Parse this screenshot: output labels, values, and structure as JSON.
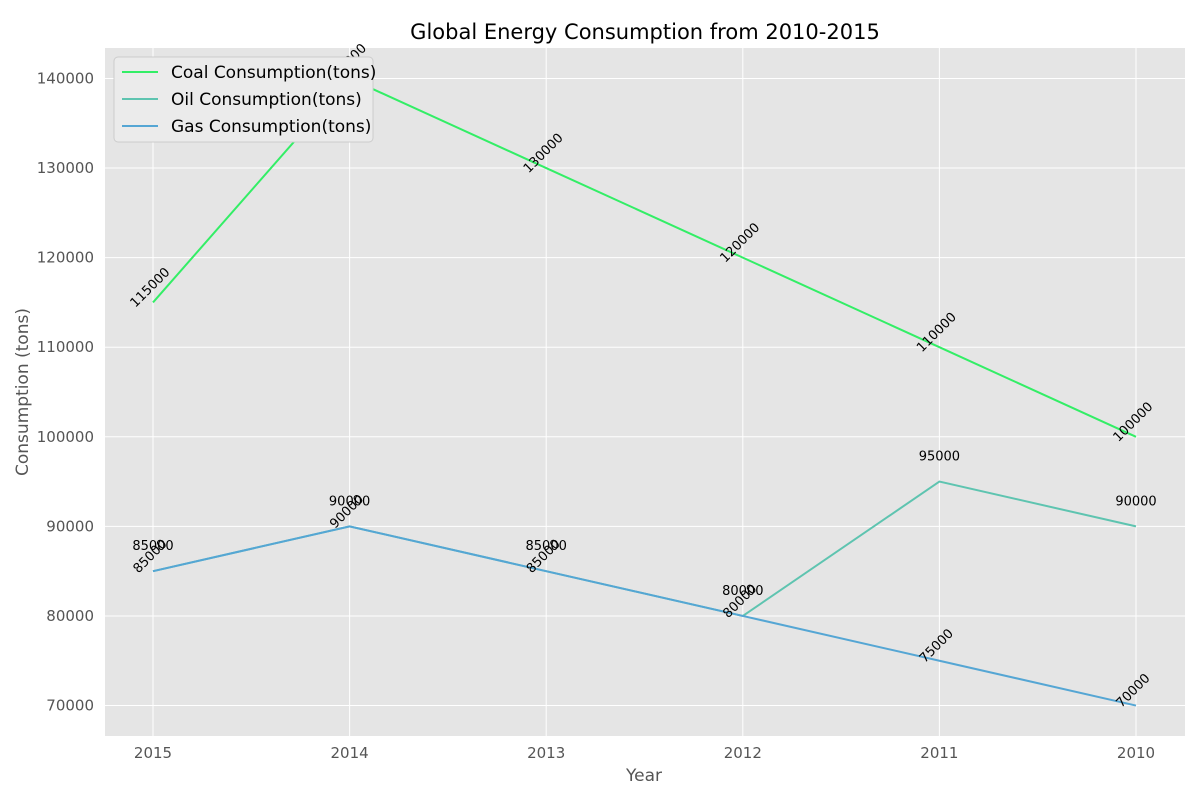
{
  "chart_data": {
    "type": "line",
    "title": "Global Energy Consumption from 2010-2015",
    "xlabel": "Year",
    "ylabel": "Consumption (tons)",
    "categories": [
      "2015",
      "2014",
      "2013",
      "2012",
      "2011",
      "2010"
    ],
    "ylim": [
      66600,
      143400
    ],
    "yticks": [
      70000,
      80000,
      90000,
      100000,
      110000,
      120000,
      130000,
      140000
    ],
    "grid": true,
    "legend_position": "top-left",
    "series": [
      {
        "name": "Coal Consumption(tons)",
        "color": "#33ee66",
        "values": [
          115000,
          140000,
          130000,
          120000,
          110000,
          100000
        ],
        "label_style": "rotated"
      },
      {
        "name": "Oil Consumption(tons)",
        "color": "#5ec4b0",
        "values": [
          85000,
          90000,
          85000,
          80000,
          95000,
          90000
        ],
        "label_style": "horizontal"
      },
      {
        "name": "Gas Consumption(tons)",
        "color": "#55a6d4",
        "values": [
          85000,
          90000,
          85000,
          80000,
          75000,
          70000
        ],
        "label_style": "rotated"
      }
    ]
  }
}
